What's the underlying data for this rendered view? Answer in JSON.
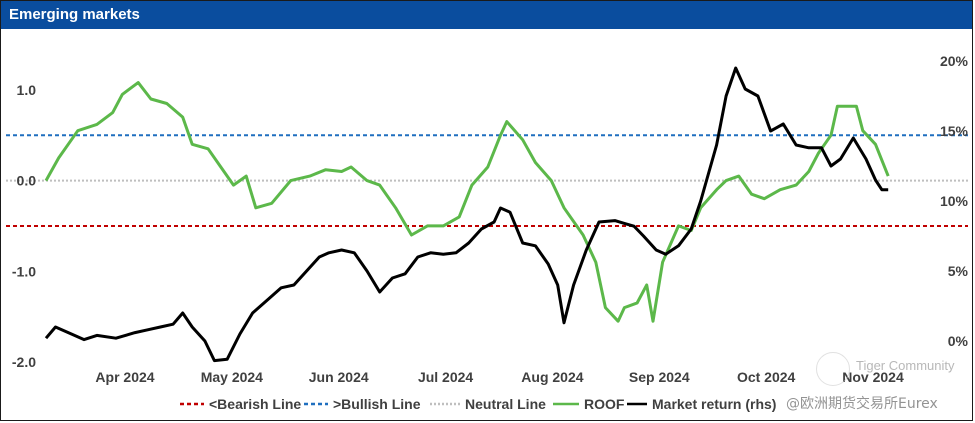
{
  "title": "Emerging markets",
  "chart_data": {
    "type": "line",
    "title": "Emerging markets",
    "x_tick_labels": [
      "Apr 2024",
      "May 2024",
      "Jun 2024",
      "Jul 2024",
      "Aug 2024",
      "Sep 2024",
      "Oct 2024",
      "Nov 2024"
    ],
    "x_range": [
      "2024-03-04",
      "2024-12-04"
    ],
    "y_left": {
      "ticks": [
        1.0,
        0.0,
        -1.0,
        -2.0
      ],
      "tick_labels": [
        "1.0",
        "0.0",
        "-1.0",
        "-2.0"
      ],
      "range": [
        -2.0,
        1.55
      ]
    },
    "y_right": {
      "ticks": [
        20,
        15,
        10,
        5,
        0
      ],
      "tick_labels": [
        "20%",
        "15%",
        "10%",
        "5%",
        "0%"
      ],
      "range": [
        -1.5,
        21.5
      ]
    },
    "reference_lines": [
      {
        "name": "<Bearish Line",
        "value": -0.5,
        "color": "#c00000",
        "style": "dashed"
      },
      {
        "name": ">Bullish Line",
        "value": 0.5,
        "color": "#1f6fbf",
        "style": "dashed"
      },
      {
        "name": "Neutral Line",
        "value": 0.0,
        "color": "#bfbfbf",
        "style": "dotted"
      }
    ],
    "series": [
      {
        "name": "ROOF",
        "axis": "left",
        "color": "#5cb84a",
        "points": [
          [
            "2024-03-04",
            0.0
          ],
          [
            "2024-03-08",
            0.25
          ],
          [
            "2024-03-14",
            0.55
          ],
          [
            "2024-03-20",
            0.62
          ],
          [
            "2024-03-25",
            0.75
          ],
          [
            "2024-03-28",
            0.95
          ],
          [
            "2024-04-02",
            1.08
          ],
          [
            "2024-04-06",
            0.9
          ],
          [
            "2024-04-11",
            0.85
          ],
          [
            "2024-04-16",
            0.7
          ],
          [
            "2024-04-19",
            0.4
          ],
          [
            "2024-04-24",
            0.35
          ],
          [
            "2024-04-28",
            0.15
          ],
          [
            "2024-05-02",
            -0.05
          ],
          [
            "2024-05-06",
            0.05
          ],
          [
            "2024-05-09",
            -0.3
          ],
          [
            "2024-05-14",
            -0.25
          ],
          [
            "2024-05-20",
            0.0
          ],
          [
            "2024-05-26",
            0.05
          ],
          [
            "2024-05-31",
            0.12
          ],
          [
            "2024-06-05",
            0.1
          ],
          [
            "2024-06-08",
            0.15
          ],
          [
            "2024-06-13",
            0.0
          ],
          [
            "2024-06-17",
            -0.05
          ],
          [
            "2024-06-22",
            -0.3
          ],
          [
            "2024-06-27",
            -0.6
          ],
          [
            "2024-07-02",
            -0.5
          ],
          [
            "2024-07-07",
            -0.5
          ],
          [
            "2024-07-12",
            -0.4
          ],
          [
            "2024-07-16",
            -0.05
          ],
          [
            "2024-07-21",
            0.15
          ],
          [
            "2024-07-25",
            0.5
          ],
          [
            "2024-07-27",
            0.65
          ],
          [
            "2024-08-01",
            0.45
          ],
          [
            "2024-08-05",
            0.2
          ],
          [
            "2024-08-10",
            0.0
          ],
          [
            "2024-08-14",
            -0.3
          ],
          [
            "2024-08-20",
            -0.6
          ],
          [
            "2024-08-24",
            -0.9
          ],
          [
            "2024-08-27",
            -1.4
          ],
          [
            "2024-08-31",
            -1.55
          ],
          [
            "2024-09-02",
            -1.4
          ],
          [
            "2024-09-06",
            -1.35
          ],
          [
            "2024-09-09",
            -1.15
          ],
          [
            "2024-09-11",
            -1.55
          ],
          [
            "2024-09-14",
            -0.9
          ],
          [
            "2024-09-19",
            -0.5
          ],
          [
            "2024-09-23",
            -0.55
          ],
          [
            "2024-09-26",
            -0.3
          ],
          [
            "2024-10-01",
            -0.1
          ],
          [
            "2024-10-04",
            0.0
          ],
          [
            "2024-10-08",
            0.05
          ],
          [
            "2024-10-12",
            -0.15
          ],
          [
            "2024-10-16",
            -0.2
          ],
          [
            "2024-10-21",
            -0.1
          ],
          [
            "2024-10-26",
            -0.05
          ],
          [
            "2024-10-30",
            0.1
          ],
          [
            "2024-11-02",
            0.3
          ],
          [
            "2024-11-06",
            0.5
          ],
          [
            "2024-11-08",
            0.82
          ],
          [
            "2024-11-14",
            0.82
          ],
          [
            "2024-11-16",
            0.55
          ],
          [
            "2024-11-20",
            0.4
          ],
          [
            "2024-11-24",
            0.05
          ]
        ]
      },
      {
        "name": "Market return (rhs)",
        "axis": "right",
        "color": "#000000",
        "points": [
          [
            "2024-03-04",
            0.2
          ],
          [
            "2024-03-07",
            1.0
          ],
          [
            "2024-03-12",
            0.5
          ],
          [
            "2024-03-16",
            0.1
          ],
          [
            "2024-03-20",
            0.4
          ],
          [
            "2024-03-26",
            0.2
          ],
          [
            "2024-04-01",
            0.6
          ],
          [
            "2024-04-05",
            0.8
          ],
          [
            "2024-04-09",
            1.0
          ],
          [
            "2024-04-13",
            1.2
          ],
          [
            "2024-04-16",
            2.0
          ],
          [
            "2024-04-19",
            1.0
          ],
          [
            "2024-04-23",
            0.0
          ],
          [
            "2024-04-26",
            -1.4
          ],
          [
            "2024-04-30",
            -1.3
          ],
          [
            "2024-05-04",
            0.5
          ],
          [
            "2024-05-08",
            2.0
          ],
          [
            "2024-05-13",
            3.0
          ],
          [
            "2024-05-17",
            3.8
          ],
          [
            "2024-05-21",
            4.0
          ],
          [
            "2024-05-25",
            5.0
          ],
          [
            "2024-05-29",
            6.0
          ],
          [
            "2024-06-01",
            6.3
          ],
          [
            "2024-06-05",
            6.5
          ],
          [
            "2024-06-09",
            6.3
          ],
          [
            "2024-06-13",
            5.0
          ],
          [
            "2024-06-17",
            3.5
          ],
          [
            "2024-06-21",
            4.5
          ],
          [
            "2024-06-25",
            4.8
          ],
          [
            "2024-06-29",
            6.0
          ],
          [
            "2024-07-03",
            6.3
          ],
          [
            "2024-07-07",
            6.2
          ],
          [
            "2024-07-11",
            6.3
          ],
          [
            "2024-07-15",
            7.0
          ],
          [
            "2024-07-19",
            8.0
          ],
          [
            "2024-07-23",
            8.5
          ],
          [
            "2024-07-25",
            9.5
          ],
          [
            "2024-07-28",
            9.2
          ],
          [
            "2024-08-01",
            7.0
          ],
          [
            "2024-08-05",
            6.8
          ],
          [
            "2024-08-09",
            5.5
          ],
          [
            "2024-08-12",
            4.0
          ],
          [
            "2024-08-14",
            1.3
          ],
          [
            "2024-08-17",
            4.0
          ],
          [
            "2024-08-21",
            6.5
          ],
          [
            "2024-08-25",
            8.5
          ],
          [
            "2024-08-30",
            8.6
          ],
          [
            "2024-09-02",
            8.4
          ],
          [
            "2024-09-05",
            8.2
          ],
          [
            "2024-09-08",
            7.5
          ],
          [
            "2024-09-12",
            6.5
          ],
          [
            "2024-09-15",
            6.2
          ],
          [
            "2024-09-19",
            6.8
          ],
          [
            "2024-09-23",
            8.0
          ],
          [
            "2024-09-26",
            10.0
          ],
          [
            "2024-10-01",
            14.0
          ],
          [
            "2024-10-04",
            17.5
          ],
          [
            "2024-10-07",
            19.5
          ],
          [
            "2024-10-10",
            18.0
          ],
          [
            "2024-10-14",
            17.5
          ],
          [
            "2024-10-18",
            15.0
          ],
          [
            "2024-10-22",
            15.5
          ],
          [
            "2024-10-26",
            14.0
          ],
          [
            "2024-10-30",
            13.8
          ],
          [
            "2024-11-03",
            13.8
          ],
          [
            "2024-11-06",
            12.5
          ],
          [
            "2024-11-09",
            13.0
          ],
          [
            "2024-11-13",
            14.5
          ],
          [
            "2024-11-17",
            13.0
          ],
          [
            "2024-11-20",
            11.5
          ],
          [
            "2024-11-22",
            10.8
          ],
          [
            "2024-11-24",
            10.8
          ]
        ]
      }
    ],
    "legend": {
      "position": "bottom",
      "entries": [
        {
          "label": "<Bearish Line",
          "color": "#c00000",
          "style": "dashed"
        },
        {
          "label": ">Bullish Line",
          "color": "#1f6fbf",
          "style": "dashed"
        },
        {
          "label": "Neutral Line",
          "color": "#bfbfbf",
          "style": "dotted"
        },
        {
          "label": "ROOF",
          "color": "#5cb84a",
          "style": "solid"
        },
        {
          "label": "Market return (rhs)",
          "color": "#000000",
          "style": "solid"
        }
      ]
    }
  },
  "watermark": {
    "line1": "Tiger Community",
    "line2": "@欧洲期货交易所Eurex"
  }
}
